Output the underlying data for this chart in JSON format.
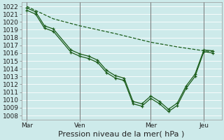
{
  "background_color": "#cdeaea",
  "grid_color": "#b0d8d8",
  "plot_bg_color": "#cdeaea",
  "line_color": "#1a5c1a",
  "xlabel": "Pression niveau de la mer( hPa )",
  "ylim": [
    1007.5,
    1022.5
  ],
  "yticks": [
    1008,
    1009,
    1010,
    1011,
    1012,
    1013,
    1014,
    1015,
    1016,
    1017,
    1018,
    1019,
    1020,
    1021,
    1022
  ],
  "xtick_labels": [
    "Mar",
    "Ven",
    "Mer",
    "Jeu"
  ],
  "xtick_positions": [
    0,
    3,
    7,
    10
  ],
  "vline_positions": [
    0,
    3,
    7,
    10
  ],
  "xlim": [
    -0.3,
    11.0
  ],
  "series1_x": [
    0.0,
    0.5,
    1.0,
    1.5,
    2.5,
    3.0,
    3.5,
    4.0,
    4.5,
    5.0,
    5.5,
    6.0,
    6.5,
    7.0,
    7.5,
    8.0,
    8.5,
    9.0,
    9.5,
    10.0,
    10.5
  ],
  "series1_y": [
    1021.5,
    1021.0,
    1019.2,
    1018.8,
    1016.1,
    1015.6,
    1015.3,
    1014.8,
    1013.5,
    1012.8,
    1012.5,
    1009.5,
    1009.2,
    1010.2,
    1009.5,
    1008.5,
    1009.3,
    1011.5,
    1013.0,
    1016.2,
    1016.0
  ],
  "series2_x": [
    0.0,
    0.5,
    1.0,
    1.5,
    2.5,
    3.0,
    3.5,
    4.0,
    4.5,
    5.0,
    5.5,
    6.0,
    6.5,
    7.0,
    7.5,
    8.0,
    8.5,
    9.0,
    9.5,
    10.0,
    10.5
  ],
  "series2_y": [
    1021.8,
    1021.3,
    1019.5,
    1019.1,
    1016.4,
    1015.9,
    1015.6,
    1015.1,
    1013.8,
    1013.1,
    1012.8,
    1009.8,
    1009.5,
    1010.5,
    1009.8,
    1008.8,
    1009.6,
    1011.8,
    1013.3,
    1016.4,
    1016.3
  ],
  "series3_x": [
    0.0,
    1.5,
    3.0,
    5.0,
    7.0,
    8.5,
    10.0,
    10.5
  ],
  "series3_y": [
    1022.0,
    1020.4,
    1019.5,
    1018.5,
    1017.4,
    1016.8,
    1016.3,
    1016.2
  ],
  "xlabel_fontsize": 8,
  "tick_fontsize": 6.5,
  "figsize": [
    3.2,
    2.0
  ],
  "dpi": 100
}
